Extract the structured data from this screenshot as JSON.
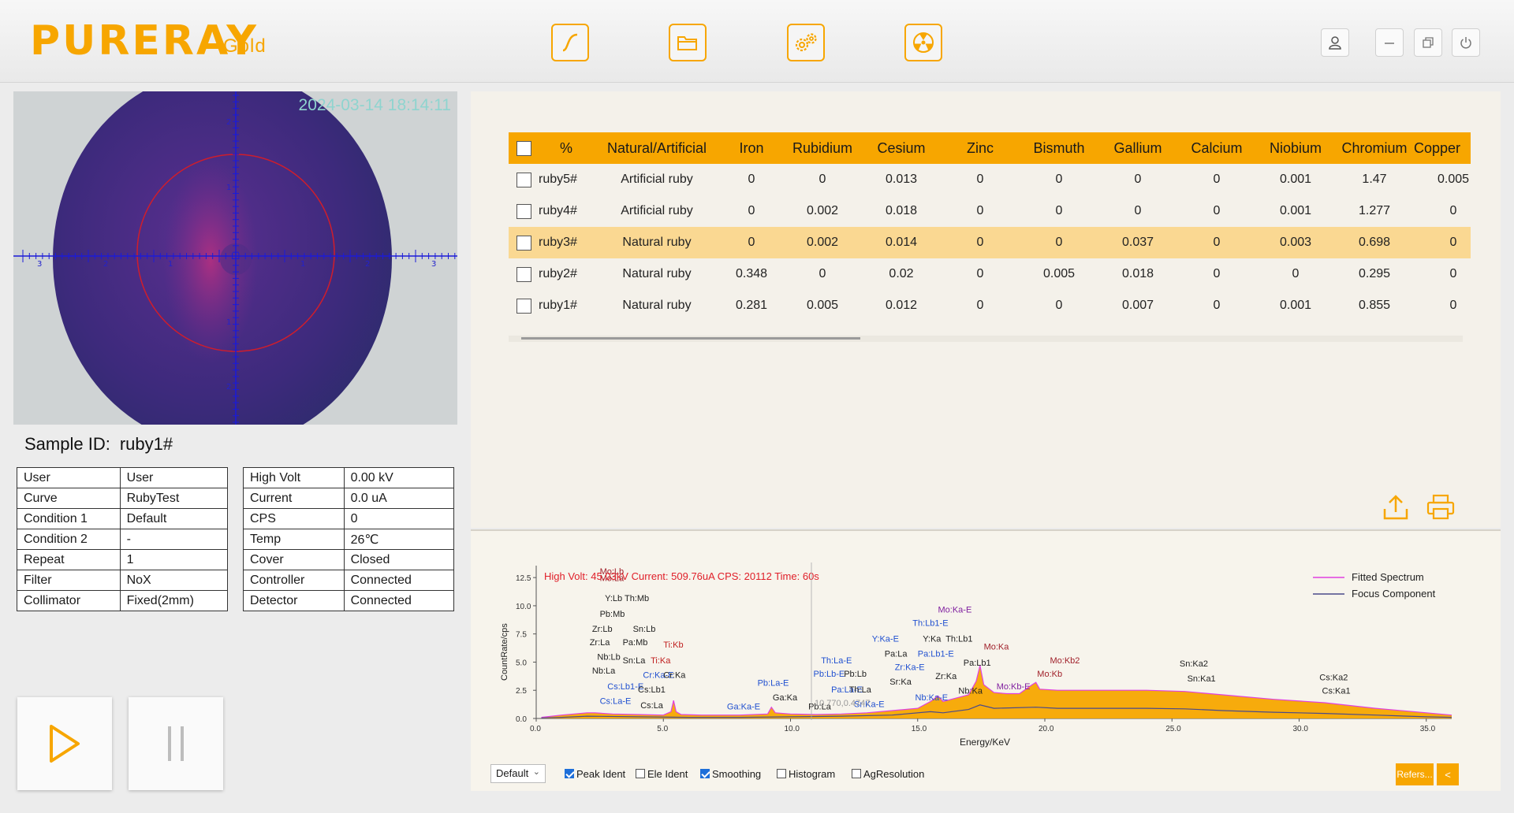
{
  "header": {
    "logo": "PURERAY",
    "logo_suffix": "Gold",
    "tools": [
      "curve-icon",
      "folder-icon",
      "gears-icon",
      "radiation-icon"
    ],
    "window_controls": [
      "user-icon",
      "minimize-icon",
      "restore-icon",
      "power-icon"
    ]
  },
  "camera": {
    "timestamp": "2024-03-14 18:14:11",
    "scale_labels": [
      "3",
      "2",
      "1",
      "1",
      "2",
      "3",
      "2",
      "1",
      "1",
      "2"
    ]
  },
  "sample": {
    "label": "Sample ID:",
    "value": "ruby1#"
  },
  "info_left": [
    {
      "k": "User",
      "v": "User"
    },
    {
      "k": "Curve",
      "v": "RubyTest"
    },
    {
      "k": "Condition 1",
      "v": "Default"
    },
    {
      "k": "Condition 2",
      "v": "-"
    },
    {
      "k": "Repeat",
      "v": "1"
    },
    {
      "k": "Filter",
      "v": "NoX"
    },
    {
      "k": "Collimator",
      "v": "Fixed(2mm)"
    }
  ],
  "info_right": [
    {
      "k": "High Volt",
      "v": "0.00 kV"
    },
    {
      "k": "Current",
      "v": "0.0 uA"
    },
    {
      "k": "CPS",
      "v": "0"
    },
    {
      "k": "Temp",
      "v": "26℃"
    },
    {
      "k": "Cover",
      "v": "Closed"
    },
    {
      "k": "Controller",
      "v": "Connected"
    },
    {
      "k": "Detector",
      "v": "Connected"
    }
  ],
  "results": {
    "columns": [
      "%",
      "Natural/Artificial",
      "Iron",
      "Rubidium",
      "Cesium",
      "Zinc",
      "Bismuth",
      "Gallium",
      "Calcium",
      "Niobium",
      "Chromium",
      "Copper"
    ],
    "rows": [
      [
        "ruby5#",
        "Artificial ruby",
        "0",
        "0",
        "0.013",
        "0",
        "0",
        "0",
        "0",
        "0.001",
        "1.47",
        "0.005"
      ],
      [
        "ruby4#",
        "Artificial ruby",
        "0",
        "0.002",
        "0.018",
        "0",
        "0",
        "0",
        "0",
        "0.001",
        "1.277",
        "0"
      ],
      [
        "ruby3#",
        "Natural ruby",
        "0",
        "0.002",
        "0.014",
        "0",
        "0",
        "0.037",
        "0",
        "0.003",
        "0.698",
        "0"
      ],
      [
        "ruby2#",
        "Natural ruby",
        "0.348",
        "0",
        "0.02",
        "0",
        "0.005",
        "0.018",
        "0",
        "0",
        "0.295",
        "0"
      ],
      [
        "ruby1#",
        "Natural ruby",
        "0.281",
        "0.005",
        "0.012",
        "0",
        "0",
        "0.007",
        "0",
        "0.001",
        "0.855",
        "0"
      ]
    ],
    "selected_row": 2
  },
  "spectrum": {
    "info_text": "High Volt: 45.03kV  Current: 509.76uA  CPS: 20112  Time: 60s",
    "cursor_readout": "10.770,0.4747",
    "legend": [
      "Fitted Spectrum",
      "Focus Component"
    ],
    "peak_labels": [
      {
        "t": "Mo:Lb",
        "x": 2.5,
        "y": 12.8,
        "c": "#a0202a"
      },
      {
        "t": "Mo:La",
        "x": 2.5,
        "y": 12.2,
        "c": "#a0202a"
      },
      {
        "t": "Y:Lb  Th:Mb",
        "x": 2.7,
        "y": 10.4,
        "c": "#222"
      },
      {
        "t": "Pb:Mb",
        "x": 2.5,
        "y": 9.0,
        "c": "#222"
      },
      {
        "t": "Zr:Lb",
        "x": 2.2,
        "y": 7.7,
        "c": "#222"
      },
      {
        "t": "Sn:Lb",
        "x": 3.8,
        "y": 7.7,
        "c": "#222"
      },
      {
        "t": "Zr:La",
        "x": 2.1,
        "y": 6.5,
        "c": "#222"
      },
      {
        "t": "Pa:Mb",
        "x": 3.4,
        "y": 6.5,
        "c": "#222"
      },
      {
        "t": "Ti:Kb",
        "x": 5.0,
        "y": 6.3,
        "c": "#c02020"
      },
      {
        "t": "Nb:Lb",
        "x": 2.4,
        "y": 5.2,
        "c": "#222"
      },
      {
        "t": "Sn:La",
        "x": 3.4,
        "y": 4.9,
        "c": "#222"
      },
      {
        "t": "Ti:Ka",
        "x": 4.5,
        "y": 4.9,
        "c": "#c02020"
      },
      {
        "t": "Nb:La",
        "x": 2.2,
        "y": 4.0,
        "c": "#222"
      },
      {
        "t": "Cr:Ka-E",
        "x": 4.2,
        "y": 3.6,
        "c": "#2050d0"
      },
      {
        "t": "Cr:Ka",
        "x": 5.0,
        "y": 3.6,
        "c": "#222"
      },
      {
        "t": "Cs:Lb1-E",
        "x": 2.8,
        "y": 2.6,
        "c": "#2050d0"
      },
      {
        "t": "Cs:Lb1",
        "x": 4.0,
        "y": 2.3,
        "c": "#222"
      },
      {
        "t": "Cs:La-E",
        "x": 2.5,
        "y": 1.3,
        "c": "#2050d0"
      },
      {
        "t": "Cs:La",
        "x": 4.1,
        "y": 0.9,
        "c": "#222"
      },
      {
        "t": "Ga:Ka-E",
        "x": 7.5,
        "y": 0.8,
        "c": "#2050d0"
      },
      {
        "t": "Pb:La-E",
        "x": 8.7,
        "y": 2.9,
        "c": "#2050d0"
      },
      {
        "t": "Ga:Ka",
        "x": 9.3,
        "y": 1.6,
        "c": "#222"
      },
      {
        "t": "Pb:La",
        "x": 10.7,
        "y": 0.8,
        "c": "#222"
      },
      {
        "t": "Th:La-E",
        "x": 11.2,
        "y": 4.9,
        "c": "#2050d0"
      },
      {
        "t": "Pb:Lb-E",
        "x": 10.9,
        "y": 3.7,
        "c": "#2050d0"
      },
      {
        "t": "Pb:Lb",
        "x": 12.1,
        "y": 3.7,
        "c": "#222"
      },
      {
        "t": "Pa:La-E",
        "x": 11.6,
        "y": 2.3,
        "c": "#2050d0"
      },
      {
        "t": "Th:La",
        "x": 12.3,
        "y": 2.3,
        "c": "#222"
      },
      {
        "t": "Sr:Ka-E",
        "x": 12.5,
        "y": 1.0,
        "c": "#2050d0"
      },
      {
        "t": "Y:Ka-E",
        "x": 13.2,
        "y": 6.8,
        "c": "#2050d0"
      },
      {
        "t": "Th:Lb1-E",
        "x": 14.8,
        "y": 8.2,
        "c": "#2050d0"
      },
      {
        "t": "Mo:Ka-E",
        "x": 15.8,
        "y": 9.4,
        "c": "#8020a0"
      },
      {
        "t": "Y:Ka",
        "x": 15.2,
        "y": 6.8,
        "c": "#222"
      },
      {
        "t": "Th:Lb1",
        "x": 16.1,
        "y": 6.8,
        "c": "#222"
      },
      {
        "t": "Pa:La",
        "x": 13.7,
        "y": 5.5,
        "c": "#222"
      },
      {
        "t": "Pa:Lb1-E",
        "x": 15.0,
        "y": 5.5,
        "c": "#2050d0"
      },
      {
        "t": "Mo:Ka",
        "x": 17.6,
        "y": 6.1,
        "c": "#a0202a"
      },
      {
        "t": "Zr:Ka-E",
        "x": 14.1,
        "y": 4.3,
        "c": "#2050d0"
      },
      {
        "t": "Pa:Lb1",
        "x": 16.8,
        "y": 4.7,
        "c": "#222"
      },
      {
        "t": "Sr:Ka",
        "x": 13.9,
        "y": 3.0,
        "c": "#222"
      },
      {
        "t": "Zr:Ka",
        "x": 15.7,
        "y": 3.5,
        "c": "#222"
      },
      {
        "t": "Nb:Ka-E",
        "x": 14.9,
        "y": 1.6,
        "c": "#2050d0"
      },
      {
        "t": "Nb:Ka",
        "x": 16.6,
        "y": 2.2,
        "c": "#222"
      },
      {
        "t": "Mo:Kb-E",
        "x": 18.1,
        "y": 2.6,
        "c": "#8020a0"
      },
      {
        "t": "Mo:Kb2",
        "x": 20.2,
        "y": 4.9,
        "c": "#a0202a"
      },
      {
        "t": "Mo:Kb",
        "x": 19.7,
        "y": 3.7,
        "c": "#a0202a"
      },
      {
        "t": "Sn:Ka2",
        "x": 25.3,
        "y": 4.6,
        "c": "#222"
      },
      {
        "t": "Sn:Ka1",
        "x": 25.6,
        "y": 3.3,
        "c": "#222"
      },
      {
        "t": "Cs:Ka2",
        "x": 30.8,
        "y": 3.4,
        "c": "#222"
      },
      {
        "t": "Cs:Ka1",
        "x": 30.9,
        "y": 2.2,
        "c": "#222"
      }
    ]
  },
  "chart_data": {
    "type": "area",
    "title": "High Volt: 45.03kV  Current: 509.76uA  CPS: 20112  Time: 60s",
    "xlabel": "Energy/KeV",
    "ylabel": "CountRate/cps",
    "xlim": [
      0,
      36
    ],
    "ylim": [
      0,
      13
    ],
    "xticks": [
      "0.0",
      "5.0",
      "10.0",
      "15.0",
      "20.0",
      "25.0",
      "30.0",
      "35.0"
    ],
    "yticks": [
      "0.0",
      "2.5",
      "5.0",
      "7.5",
      "10.0",
      "12.5"
    ],
    "legend_position": "top-right",
    "series": [
      {
        "name": "Fitted Spectrum",
        "color": "#e040e0",
        "x": [
          0.2,
          1.0,
          2.0,
          2.3,
          3.0,
          4.0,
          5.0,
          5.3,
          5.4,
          5.5,
          5.7,
          6.5,
          8.0,
          9.1,
          9.25,
          9.4,
          10.0,
          11.0,
          12.0,
          13.0,
          14.0,
          15.0,
          15.5,
          15.8,
          16.0,
          16.5,
          17.0,
          17.3,
          17.45,
          17.6,
          18.0,
          18.5,
          19.0,
          19.5,
          19.65,
          19.8,
          20.5,
          22.0,
          24.0,
          25.5,
          27.0,
          29.0,
          31.0,
          33.0,
          35.0,
          36.0
        ],
        "y": [
          0.1,
          0.3,
          0.5,
          0.5,
          0.4,
          0.35,
          0.3,
          0.6,
          1.6,
          0.6,
          0.35,
          0.3,
          0.3,
          0.4,
          1.0,
          0.5,
          0.4,
          0.35,
          0.4,
          0.5,
          0.7,
          0.9,
          1.5,
          2.0,
          1.5,
          1.8,
          2.1,
          3.3,
          4.7,
          3.0,
          2.3,
          2.2,
          2.2,
          3.0,
          3.2,
          2.6,
          2.5,
          2.5,
          2.5,
          2.4,
          2.1,
          1.7,
          1.4,
          0.9,
          0.5,
          0.3
        ]
      },
      {
        "name": "Focus Component",
        "color": "#4a4a8a",
        "x": [
          0.2,
          1.0,
          2.0,
          4.0,
          6.0,
          8.0,
          10.0,
          12.0,
          14.0,
          15.5,
          16.0,
          17.0,
          17.45,
          18.0,
          19.65,
          20.5,
          22.0,
          24.0,
          25.5,
          27.0,
          29.0,
          31.0,
          33.0,
          35.0,
          36.0
        ],
        "y": [
          0.05,
          0.1,
          0.2,
          0.15,
          0.1,
          0.1,
          0.15,
          0.2,
          0.3,
          0.6,
          0.5,
          0.8,
          1.2,
          0.9,
          1.0,
          0.9,
          0.9,
          0.9,
          0.85,
          0.7,
          0.55,
          0.45,
          0.3,
          0.15,
          0.1
        ]
      }
    ]
  },
  "controls": {
    "preset": "Default",
    "checks": [
      {
        "label": "Peak Ident",
        "on": true
      },
      {
        "label": "Ele Ident",
        "on": false
      },
      {
        "label": "Smoothing",
        "on": true
      },
      {
        "label": "Histogram",
        "on": false
      },
      {
        "label": "AgResolution",
        "on": false
      }
    ],
    "refers_label": "Refers...",
    "collapse_label": "<"
  }
}
